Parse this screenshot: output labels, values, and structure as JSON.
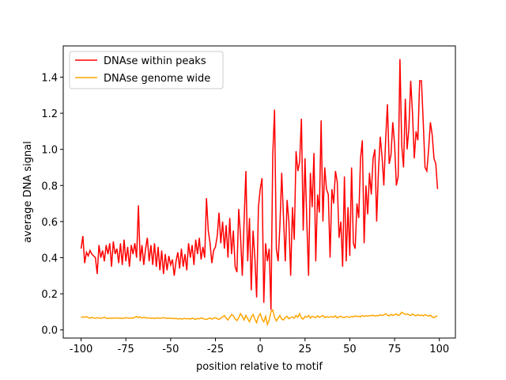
{
  "chart_data": {
    "type": "line",
    "xlabel": "position relative to motif",
    "ylabel": "average DNA signal",
    "legend": "upper left",
    "xlim": [
      -109.95,
      108.95
    ],
    "ylim": [
      -0.045,
      1.573
    ],
    "xticks": [
      -100,
      -75,
      -50,
      -25,
      0,
      25,
      50,
      75,
      100
    ],
    "yticks": [
      {
        "value": 0,
        "label": "0.0"
      },
      0.2,
      0.4,
      0.6,
      0.8,
      {
        "value": 1,
        "label": "1.0"
      },
      1.2,
      1.4
    ],
    "x": [
      -100,
      -99,
      -98,
      -97,
      -96,
      -95,
      -94,
      -93,
      -92,
      -91,
      -90,
      -89,
      -88,
      -87,
      -86,
      -85,
      -84,
      -83,
      -82,
      -81,
      -80,
      -79,
      -78,
      -77,
      -76,
      -75,
      -74,
      -73,
      -72,
      -71,
      -70,
      -69,
      -68,
      -67,
      -66,
      -65,
      -64,
      -63,
      -62,
      -61,
      -60,
      -59,
      -58,
      -57,
      -56,
      -55,
      -54,
      -53,
      -52,
      -51,
      -50,
      -49,
      -48,
      -47,
      -46,
      -45,
      -44,
      -43,
      -42,
      -41,
      -40,
      -39,
      -38,
      -37,
      -36,
      -35,
      -34,
      -33,
      -32,
      -31,
      -30,
      -29,
      -28,
      -27,
      -26,
      -25,
      -24,
      -23,
      -22,
      -21,
      -20,
      -19,
      -18,
      -17,
      -16,
      -15,
      -14,
      -13,
      -12,
      -11,
      -10,
      -9,
      -8,
      -7,
      -6,
      -5,
      -4,
      -3,
      -2,
      -1,
      0,
      1,
      2,
      3,
      4,
      5,
      6,
      7,
      8,
      9,
      10,
      11,
      12,
      13,
      14,
      15,
      16,
      17,
      18,
      19,
      20,
      21,
      22,
      23,
      24,
      25,
      26,
      27,
      28,
      29,
      30,
      31,
      32,
      33,
      34,
      35,
      36,
      37,
      38,
      39,
      40,
      41,
      42,
      43,
      44,
      45,
      46,
      47,
      48,
      49,
      50,
      51,
      52,
      53,
      54,
      55,
      56,
      57,
      58,
      59,
      60,
      61,
      62,
      63,
      64,
      65,
      66,
      67,
      68,
      69,
      70,
      71,
      72,
      73,
      74,
      75,
      76,
      77,
      78,
      79,
      80,
      81,
      82,
      83,
      84,
      85,
      86,
      87,
      88,
      89,
      90,
      91,
      92,
      93,
      94,
      95,
      96,
      97,
      98,
      99
    ],
    "series": [
      {
        "name": "DNAse within peaks",
        "color": "#ff0000",
        "values": [
          0.45,
          0.52,
          0.37,
          0.43,
          0.41,
          0.44,
          0.42,
          0.41,
          0.4,
          0.31,
          0.47,
          0.4,
          0.44,
          0.38,
          0.47,
          0.42,
          0.48,
          0.35,
          0.49,
          0.42,
          0.45,
          0.37,
          0.48,
          0.36,
          0.5,
          0.38,
          0.46,
          0.35,
          0.47,
          0.42,
          0.48,
          0.4,
          0.69,
          0.38,
          0.47,
          0.36,
          0.45,
          0.51,
          0.38,
          0.47,
          0.36,
          0.48,
          0.35,
          0.46,
          0.33,
          0.44,
          0.31,
          0.42,
          0.33,
          0.41,
          0.36,
          0.39,
          0.3,
          0.38,
          0.43,
          0.34,
          0.45,
          0.35,
          0.42,
          0.33,
          0.48,
          0.4,
          0.47,
          0.36,
          0.5,
          0.42,
          0.51,
          0.39,
          0.46,
          0.4,
          0.73,
          0.55,
          0.48,
          0.37,
          0.44,
          0.46,
          0.52,
          0.65,
          0.48,
          0.6,
          0.45,
          0.58,
          0.4,
          0.62,
          0.42,
          0.55,
          0.35,
          0.32,
          0.67,
          0.52,
          0.3,
          0.6,
          0.88,
          0.38,
          0.62,
          0.22,
          0.55,
          0.4,
          0.18,
          0.68,
          0.78,
          0.84,
          0.15,
          0.48,
          0.38,
          0.45,
          0.11,
          0.97,
          1.22,
          0.45,
          0.38,
          0.58,
          0.87,
          0.62,
          0.38,
          0.72,
          0.6,
          0.3,
          0.68,
          0.5,
          0.99,
          0.88,
          0.93,
          1.17,
          0.55,
          0.95,
          0.6,
          0.3,
          0.87,
          0.68,
          0.98,
          0.38,
          0.75,
          0.65,
          1.16,
          0.6,
          0.9,
          0.78,
          0.75,
          0.4,
          0.78,
          0.7,
          0.88,
          0.82,
          0.51,
          0.6,
          0.35,
          0.85,
          0.38,
          0.68,
          0.41,
          0.9,
          0.48,
          0.45,
          0.7,
          0.62,
          0.95,
          1.05,
          0.48,
          0.8,
          0.64,
          0.87,
          0.75,
          0.95,
          1.0,
          0.6,
          0.88,
          1.07,
          0.96,
          0.8,
          1.05,
          1.25,
          0.92,
          0.97,
          1.15,
          1.03,
          0.8,
          0.85,
          1.5,
          1.02,
          0.9,
          1.28,
          1.0,
          1.12,
          1.38,
          1.2,
          0.95,
          1.1,
          1.05,
          1.38,
          1.38,
          1.15,
          0.9,
          0.88,
          1.0,
          1.15,
          1.08,
          0.95,
          0.92,
          0.78
        ]
      },
      {
        "name": "DNAse genome wide",
        "color": "#ffa500",
        "values": [
          0.068,
          0.072,
          0.07,
          0.074,
          0.068,
          0.065,
          0.07,
          0.066,
          0.064,
          0.068,
          0.066,
          0.064,
          0.067,
          0.07,
          0.065,
          0.063,
          0.066,
          0.064,
          0.066,
          0.065,
          0.067,
          0.064,
          0.066,
          0.063,
          0.065,
          0.068,
          0.066,
          0.064,
          0.067,
          0.065,
          0.07,
          0.075,
          0.068,
          0.072,
          0.066,
          0.07,
          0.068,
          0.065,
          0.067,
          0.064,
          0.066,
          0.063,
          0.065,
          0.067,
          0.064,
          0.066,
          0.068,
          0.065,
          0.064,
          0.066,
          0.063,
          0.065,
          0.062,
          0.064,
          0.061,
          0.063,
          0.06,
          0.062,
          0.064,
          0.061,
          0.063,
          0.06,
          0.065,
          0.062,
          0.058,
          0.064,
          0.061,
          0.066,
          0.063,
          0.06,
          0.058,
          0.062,
          0.066,
          0.06,
          0.064,
          0.068,
          0.062,
          0.058,
          0.065,
          0.072,
          0.08,
          0.065,
          0.055,
          0.07,
          0.085,
          0.078,
          0.06,
          0.052,
          0.068,
          0.09,
          0.075,
          0.055,
          0.08,
          0.062,
          0.045,
          0.07,
          0.085,
          0.06,
          0.04,
          0.075,
          0.09,
          0.06,
          0.045,
          0.075,
          0.03,
          0.055,
          0.1,
          0.11,
          0.07,
          0.05,
          0.065,
          0.08,
          0.06,
          0.055,
          0.07,
          0.075,
          0.062,
          0.068,
          0.072,
          0.065,
          0.08,
          0.07,
          0.09,
          0.066,
          0.06,
          0.075,
          0.07,
          0.08,
          0.066,
          0.075,
          0.072,
          0.068,
          0.078,
          0.07,
          0.074,
          0.08,
          0.068,
          0.074,
          0.07,
          0.072,
          0.074,
          0.07,
          0.078,
          0.066,
          0.072,
          0.076,
          0.07,
          0.068,
          0.074,
          0.072,
          0.07,
          0.075,
          0.072,
          0.078,
          0.074,
          0.076,
          0.072,
          0.08,
          0.075,
          0.078,
          0.076,
          0.08,
          0.078,
          0.082,
          0.076,
          0.08,
          0.078,
          0.084,
          0.08,
          0.082,
          0.09,
          0.082,
          0.078,
          0.086,
          0.08,
          0.084,
          0.088,
          0.08,
          0.085,
          0.098,
          0.092,
          0.086,
          0.088,
          0.084,
          0.08,
          0.088,
          0.082,
          0.078,
          0.085,
          0.08,
          0.082,
          0.078,
          0.085,
          0.08,
          0.076,
          0.082,
          0.072,
          0.068,
          0.074,
          0.078
        ]
      }
    ]
  }
}
